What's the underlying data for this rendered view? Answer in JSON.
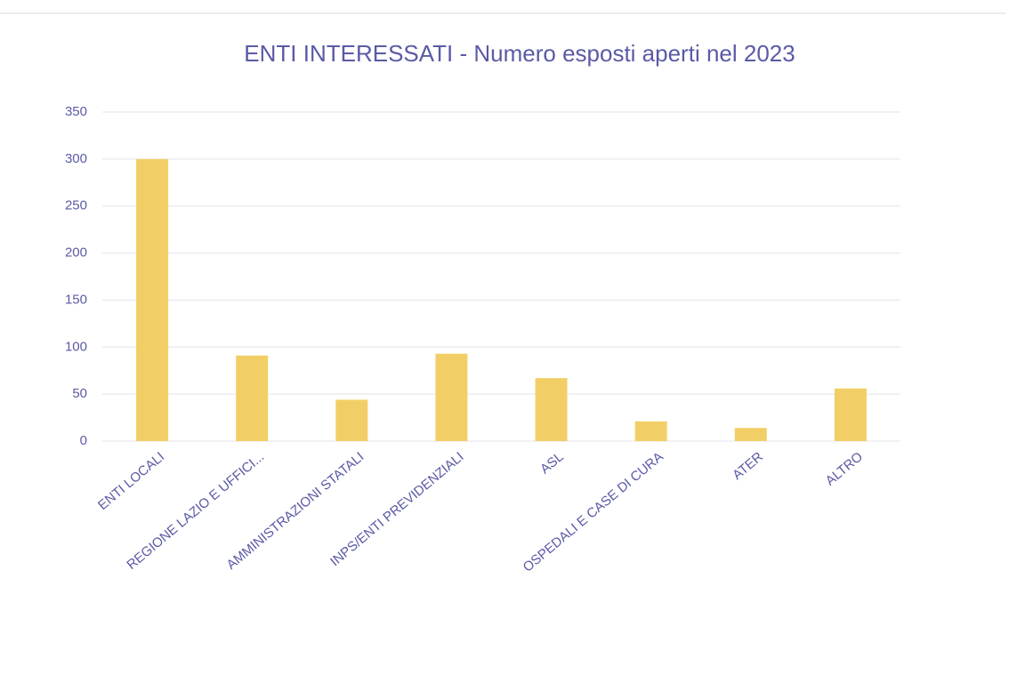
{
  "chart_data": {
    "type": "bar",
    "title": "ENTI INTERESSATI - Numero esposti aperti nel 2023",
    "categories": [
      "ENTI LOCALI",
      "REGIONE LAZIO E UFFICI...",
      "AMMINISTRAZIONI STATALI",
      "INPS/ENTI PREVIDENZIALI",
      "ASL",
      "OSPEDALI E CASE DI CURA",
      "ATER",
      "ALTRO"
    ],
    "values": [
      300,
      91,
      44,
      93,
      67,
      21,
      14,
      56
    ],
    "color": "#f2cf66",
    "ylim": [
      0,
      350
    ],
    "yticks": [
      0,
      50,
      100,
      150,
      200,
      250,
      300,
      350
    ],
    "grid": true
  }
}
